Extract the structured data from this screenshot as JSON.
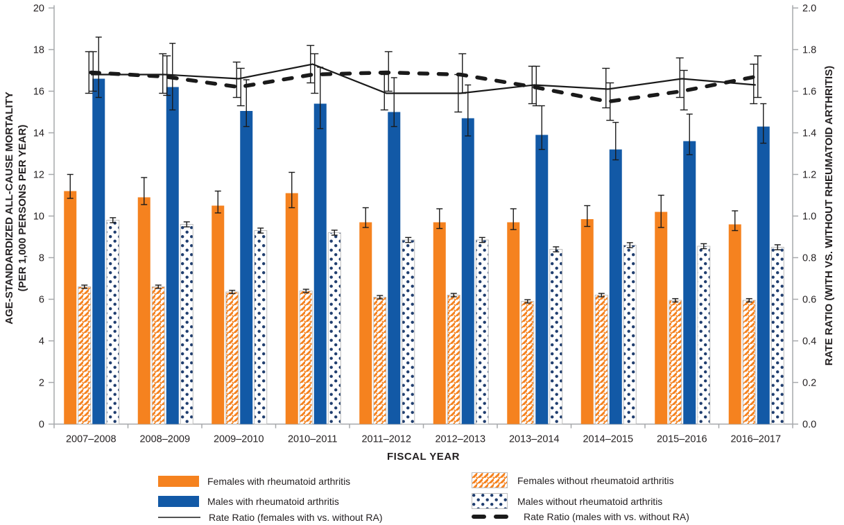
{
  "figure": {
    "background": "#FFFFFF"
  },
  "colors": {
    "orange": "#F5821F",
    "blue": "#1259A6",
    "dot_navy": "#203E6F",
    "pattern_border": "#BDBDBD",
    "axis_gray": "#A6A8AB",
    "ink": "#1A1A1A",
    "text": "#231F20"
  },
  "chart_data": {
    "type": "bar+line combo (dual axis)",
    "grid": false,
    "legend_position": "bottom",
    "categories": [
      "2007–2008",
      "2008–2009",
      "2009–2010",
      "2010–2011",
      "2011–2012",
      "2012–2013",
      "2013–2014",
      "2014–2015",
      "2015–2016",
      "2016–2017"
    ],
    "x_axis": {
      "title": "FISCAL YEAR"
    },
    "left_axis": {
      "title_line1": "AGE-STANDARDIZED ALL-CAUSE MORTALITY",
      "title_line2": "(PER 1,000 PERSONS PER YEAR)",
      "min": 0,
      "max": 20,
      "step": 2,
      "decimals": 0
    },
    "right_axis": {
      "title": "RATE RATIO (WITH VS. WITHOUT RHEUMATOID ARTHRITIS)",
      "min": 0,
      "max": 2,
      "step": 0.2,
      "decimals": 1
    },
    "bar_series": [
      {
        "id": "females-with-ra",
        "label": "Females with rheumatoid arthritis",
        "pattern": "solid",
        "color": "#F5821F",
        "values": [
          11.2,
          10.9,
          10.5,
          11.1,
          9.7,
          9.7,
          9.7,
          9.85,
          10.2,
          9.6
        ],
        "ci_low": [
          10.85,
          10.55,
          10.15,
          10.4,
          9.45,
          9.4,
          9.35,
          9.5,
          9.45,
          9.3
        ],
        "ci_high": [
          12.0,
          11.85,
          11.2,
          12.1,
          10.4,
          10.35,
          10.35,
          10.5,
          11.0,
          10.25
        ]
      },
      {
        "id": "females-without-ra",
        "label": "Females without rheumatoid arthritis",
        "pattern": "hatch",
        "color": "#F5821F",
        "values": [
          6.6,
          6.6,
          6.35,
          6.4,
          6.1,
          6.2,
          5.9,
          6.2,
          5.95,
          5.95
        ],
        "ci_low": [
          6.52,
          6.52,
          6.27,
          6.32,
          6.02,
          6.12,
          5.82,
          6.12,
          5.87,
          5.87
        ],
        "ci_high": [
          6.68,
          6.68,
          6.43,
          6.48,
          6.18,
          6.28,
          5.98,
          6.28,
          6.03,
          6.03
        ]
      },
      {
        "id": "males-with-ra",
        "label": "Males with rheumatoid arthritis",
        "pattern": "solid",
        "color": "#1259A6",
        "values": [
          16.6,
          16.2,
          15.05,
          15.4,
          15.0,
          14.7,
          13.9,
          13.2,
          13.6,
          14.3
        ],
        "ci_low": [
          15.7,
          15.1,
          14.3,
          14.2,
          14.3,
          13.85,
          13.2,
          12.7,
          12.95,
          13.5
        ],
        "ci_high": [
          18.6,
          18.3,
          16.55,
          17.15,
          16.65,
          16.3,
          15.3,
          14.5,
          14.9,
          15.4
        ]
      },
      {
        "id": "males-without-ra",
        "label": "Males without rheumatoid arthritis",
        "pattern": "dots",
        "color": "#203E6F",
        "values": [
          9.8,
          9.6,
          9.3,
          9.2,
          8.85,
          8.85,
          8.4,
          8.6,
          8.55,
          8.5
        ],
        "ci_low": [
          9.68,
          9.48,
          9.18,
          9.08,
          8.73,
          8.73,
          8.28,
          8.48,
          8.43,
          8.38
        ],
        "ci_high": [
          9.92,
          9.72,
          9.42,
          9.32,
          8.97,
          8.97,
          8.52,
          8.72,
          8.67,
          8.62
        ]
      }
    ],
    "line_series": [
      {
        "id": "rr-females",
        "label": "Rate Ratio (females with vs. without RA)",
        "style": "solid-thin",
        "axis": "right",
        "values": [
          1.68,
          1.68,
          1.66,
          1.73,
          1.59,
          1.59,
          1.63,
          1.61,
          1.66,
          1.63
        ],
        "ci_low": [
          1.59,
          1.59,
          1.57,
          1.64,
          1.51,
          1.5,
          1.54,
          1.52,
          1.57,
          1.54
        ],
        "ci_high": [
          1.79,
          1.78,
          1.74,
          1.82,
          1.68,
          1.68,
          1.72,
          1.71,
          1.76,
          1.73
        ]
      },
      {
        "id": "rr-males",
        "label": "Rate Ratio (males with vs. without RA)",
        "style": "dashed-thick",
        "axis": "right",
        "values": [
          1.69,
          1.67,
          1.62,
          1.68,
          1.69,
          1.68,
          1.62,
          1.55,
          1.6,
          1.67
        ],
        "ci_low": [
          1.6,
          1.58,
          1.53,
          1.59,
          1.6,
          1.59,
          1.53,
          1.46,
          1.51,
          1.57
        ],
        "ci_high": [
          1.79,
          1.77,
          1.71,
          1.78,
          1.79,
          1.78,
          1.72,
          1.64,
          1.7,
          1.77
        ]
      }
    ]
  },
  "legend": {
    "items": [
      {
        "id": "females-with-ra",
        "label": "Females with rheumatoid arthritis"
      },
      {
        "id": "males-with-ra",
        "label": "Males with rheumatoid arthritis"
      },
      {
        "id": "rr-females",
        "label": "Rate Ratio (females with vs. without RA)"
      },
      {
        "id": "females-without-ra",
        "label": "Females without rheumatoid arthritis"
      },
      {
        "id": "males-without-ra",
        "label": "Males without rheumatoid arthritis"
      },
      {
        "id": "rr-males",
        "label": "Rate Ratio (males with vs. without RA)"
      }
    ]
  }
}
